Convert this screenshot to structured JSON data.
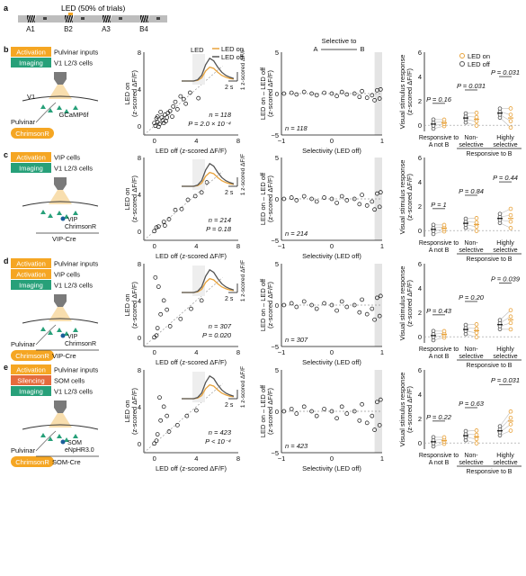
{
  "panel_a": {
    "letter": "a",
    "led_caption": "LED (50% of trials)",
    "stimuli": [
      "A1",
      "B2",
      "A3",
      "B4"
    ]
  },
  "panels": [
    {
      "letter": "b",
      "tags": [
        {
          "kind": "Activation",
          "text": "Pulvinar inputs"
        },
        {
          "kind": "Imaging",
          "text": "V1 L2/3 cells"
        }
      ],
      "diagram": {
        "area": "V1",
        "reporter": "GCaMP6f",
        "source": "Pulvinar",
        "opsin_pill": "ChrimsonR",
        "vip_label": "",
        "cre": ""
      },
      "stats_scatter": {
        "n": "n = 118",
        "p": "P = 2.0 × 10⁻⁴"
      },
      "legend": {
        "on": "LED on",
        "off": "LED off"
      },
      "trace_led_label": "LED",
      "n_diff": "n = 118",
      "resp": {
        "p_values": [
          "P = 0.16",
          "P = 0.031",
          "P = 0.031"
        ],
        "ymax": 6
      }
    },
    {
      "letter": "c",
      "tags": [
        {
          "kind": "Activation",
          "text": "VIP cells"
        },
        {
          "kind": "Imaging",
          "text": "V1 L2/3 cells"
        }
      ],
      "diagram": {
        "area": "",
        "reporter": "",
        "source": "",
        "opsin_pill": "",
        "vip_label": "VIP",
        "opsin_text": "ChrimsonR",
        "cre": "VIP-Cre"
      },
      "stats_scatter": {
        "n": "n = 214",
        "p": "P = 0.18"
      },
      "n_diff": "n = 214",
      "resp": {
        "p_values": [
          "P = 1",
          "P = 0.84",
          "P = 0.44"
        ],
        "ymax": 6
      }
    },
    {
      "letter": "d",
      "tags": [
        {
          "kind": "Activation",
          "text": "Pulvinar inputs"
        },
        {
          "kind": "Activation",
          "text": "VIP cells"
        },
        {
          "kind": "Imaging",
          "text": "V1 L2/3 cells"
        }
      ],
      "diagram": {
        "area": "",
        "reporter": "",
        "source": "Pulvinar",
        "opsin_pill": "ChrimsonR",
        "vip_label": "VIP",
        "opsin_text": "ChrimsonR",
        "cre": "VIP-Cre"
      },
      "stats_scatter": {
        "n": "n = 307",
        "p": "P = 0.020"
      },
      "n_diff": "n = 307",
      "resp": {
        "p_values": [
          "P = 0.43",
          "P = 0.20",
          "P = 0.039"
        ],
        "ymax": 6
      }
    },
    {
      "letter": "e",
      "tags": [
        {
          "kind": "Activation",
          "text": "Pulvinar inputs"
        },
        {
          "kind": "Silencing",
          "text": "SOM cells"
        },
        {
          "kind": "Imaging",
          "text": "V1 L2/3 cells"
        }
      ],
      "diagram": {
        "area": "",
        "reporter": "",
        "source": "Pulvinar",
        "opsin_pill": "ChrimsonR",
        "vip_label": "SOM",
        "opsin_text": "eNpHR3.0",
        "cre": "SOM-Cre"
      },
      "stats_scatter": {
        "n": "n = 423",
        "p": "P < 10⁻⁴"
      },
      "n_diff": "n = 423",
      "resp": {
        "p_values": [
          "P = 0.22",
          "P = 0.63",
          "P = 0.031"
        ],
        "ymax": 6
      }
    }
  ],
  "axis_text": {
    "scatter_xlabel": "LED off (z-scored ΔF/F)",
    "scatter_ylabel_1": "LED on",
    "scatter_ylabel_2": "(z-scored ΔF/F)",
    "scatter_ticks": [
      "0",
      "4",
      "8"
    ],
    "trace_scale_y": "1 z-scored ΔF/F",
    "trace_scale_x": "2 s",
    "diff_ylabel_1": "LED on – LED off",
    "diff_ylabel_2": "(z-scored ΔF/F)",
    "diff_xlabel": "Selectivity (LED off)",
    "diff_xticks": [
      "−1",
      "0",
      "1"
    ],
    "diff_yticks": [
      "5",
      "0",
      "−5"
    ],
    "selective_title": "Selective to",
    "selective_a": "A",
    "selective_b": "B",
    "resp_ylabel_1": "Visual stimulus response",
    "resp_ylabel_2": "(z-scored ΔF/F)",
    "resp_yticks": [
      "0",
      "2",
      "4",
      "6"
    ],
    "resp_groups": [
      "Responsive to A not B",
      "Non-selective",
      "Highly selective"
    ],
    "resp_group_lines": [
      [
        "Responsive to",
        "A not B"
      ],
      [
        "Non-",
        "selective"
      ],
      [
        "Highly",
        "selective"
      ]
    ],
    "resp_bracket": "Responsive to B"
  },
  "colors": {
    "activation": "#f5a623",
    "imaging": "#27a079",
    "silencing": "#e56b3d",
    "led_on": "#e8a33c",
    "led_off": "#555555",
    "highlight": "#e4e4e4"
  },
  "chart_data": [
    {
      "type": "scatter",
      "panel": "b",
      "xlabel": "LED off (z-scored ΔF/F)",
      "ylabel": "LED on (z-scored ΔF/F)",
      "xlim": [
        -1,
        8
      ],
      "ylim": [
        -1,
        8
      ],
      "n": 118,
      "points": [
        [
          0.1,
          0.0
        ],
        [
          0.3,
          0.4
        ],
        [
          0.5,
          0.2
        ],
        [
          0.8,
          0.6
        ],
        [
          1.0,
          1.2
        ],
        [
          1.2,
          0.9
        ],
        [
          0.2,
          0.8
        ],
        [
          0.6,
          1.5
        ],
        [
          1.5,
          1.6
        ],
        [
          2.0,
          2.6
        ],
        [
          2.5,
          3.2
        ],
        [
          3.0,
          2.4
        ],
        [
          3.4,
          3.6
        ],
        [
          0.0,
          0.3
        ],
        [
          0.4,
          -0.1
        ],
        [
          0.9,
          0.3
        ],
        [
          1.1,
          0.5
        ],
        [
          1.7,
          1.0
        ],
        [
          0.7,
          0.9
        ],
        [
          2.2,
          1.8
        ],
        [
          4.2,
          3.0
        ],
        [
          0.3,
          1.0
        ],
        [
          1.3,
          1.4
        ],
        [
          1.8,
          2.1
        ],
        [
          2.8,
          2.9
        ]
      ]
    },
    {
      "type": "scatter",
      "panel": "b",
      "xlabel": "Selectivity (LED off)",
      "ylabel": "LED on – LED off (z-scored ΔF/F)",
      "xlim": [
        -1,
        1
      ],
      "ylim": [
        -5,
        5
      ],
      "n": 118,
      "points": [
        [
          -0.95,
          0.0
        ],
        [
          -0.8,
          0.1
        ],
        [
          -0.7,
          -0.1
        ],
        [
          -0.55,
          0.2
        ],
        [
          -0.4,
          0.0
        ],
        [
          -0.3,
          -0.2
        ],
        [
          -0.15,
          0.1
        ],
        [
          0.0,
          0.0
        ],
        [
          0.1,
          -0.3
        ],
        [
          0.2,
          0.2
        ],
        [
          0.3,
          -0.1
        ],
        [
          0.45,
          0.0
        ],
        [
          0.55,
          -0.4
        ],
        [
          0.6,
          0.3
        ],
        [
          0.7,
          -0.5
        ],
        [
          0.8,
          -0.2
        ],
        [
          0.85,
          -0.8
        ],
        [
          0.9,
          0.4
        ],
        [
          0.95,
          -0.6
        ],
        [
          0.97,
          0.5
        ]
      ]
    },
    {
      "type": "line",
      "panel": "b",
      "series": [
        {
          "name": "LED on",
          "values": [
            0,
            0,
            0,
            0,
            0.1,
            0.5,
            1.6,
            2.2,
            2.0,
            1.4,
            0.9,
            0.6,
            0.4,
            0.3
          ]
        },
        {
          "name": "LED off",
          "values": [
            0,
            0,
            0,
            0,
            0.2,
            0.9,
            2.6,
            3.6,
            3.2,
            2.2,
            1.4,
            0.9,
            0.6,
            0.4
          ]
        }
      ]
    },
    {
      "type": "scatter",
      "panel": "b",
      "ylabel": "Visual stimulus response (z-scored ΔF/F)",
      "categories": [
        "Responsive to A not B",
        "Non-selective",
        "Highly selective"
      ],
      "ylim": [
        -0.5,
        6
      ],
      "series": [
        {
          "name": "LED off",
          "values": [
            [
              0.1,
              0.0
            ],
            [
              0.2,
              0.1
            ],
            [
              0.0,
              0.1
            ]
          ]
        },
        {
          "name": "LED on",
          "values": [
            [
              0.1,
              0.2
            ],
            [
              0.0,
              0.1
            ],
            [
              0.2,
              0.1
            ]
          ]
        }
      ]
    },
    {
      "type": "scatter",
      "panel": "c",
      "n": 214,
      "xlim": [
        -1,
        8
      ],
      "ylim": [
        -1,
        8
      ],
      "points": [
        [
          0.0,
          0.0
        ],
        [
          0.4,
          0.5
        ],
        [
          0.9,
          1.0
        ],
        [
          1.4,
          1.3
        ],
        [
          2.0,
          2.3
        ],
        [
          2.6,
          2.4
        ],
        [
          3.2,
          3.4
        ],
        [
          3.9,
          3.8
        ],
        [
          4.5,
          4.2
        ],
        [
          5.0,
          5.3
        ],
        [
          1.0,
          0.6
        ],
        [
          0.2,
          0.4
        ]
      ]
    },
    {
      "type": "scatter",
      "panel": "d",
      "n": 307,
      "xlim": [
        -1,
        8
      ],
      "ylim": [
        -1,
        8
      ],
      "points": [
        [
          0.0,
          0.0
        ],
        [
          0.3,
          1.0
        ],
        [
          0.6,
          2.5
        ],
        [
          0.9,
          4.0
        ],
        [
          1.2,
          3.0
        ],
        [
          0.4,
          5.5
        ],
        [
          1.5,
          1.2
        ],
        [
          2.5,
          2.0
        ],
        [
          3.5,
          3.1
        ],
        [
          4.5,
          4.0
        ],
        [
          0.1,
          6.5
        ],
        [
          0.2,
          0.2
        ]
      ]
    },
    {
      "type": "scatter",
      "panel": "e",
      "n": 423,
      "xlim": [
        -1,
        8
      ],
      "ylim": [
        -1,
        8
      ],
      "points": [
        [
          0.0,
          0.0
        ],
        [
          0.3,
          1.0
        ],
        [
          0.6,
          2.5
        ],
        [
          0.9,
          4.0
        ],
        [
          1.2,
          3.0
        ],
        [
          0.5,
          5.0
        ],
        [
          1.4,
          1.3
        ],
        [
          2.2,
          2.0
        ],
        [
          3.1,
          3.0
        ],
        [
          4.0,
          3.6
        ],
        [
          0.2,
          0.3
        ]
      ]
    }
  ]
}
